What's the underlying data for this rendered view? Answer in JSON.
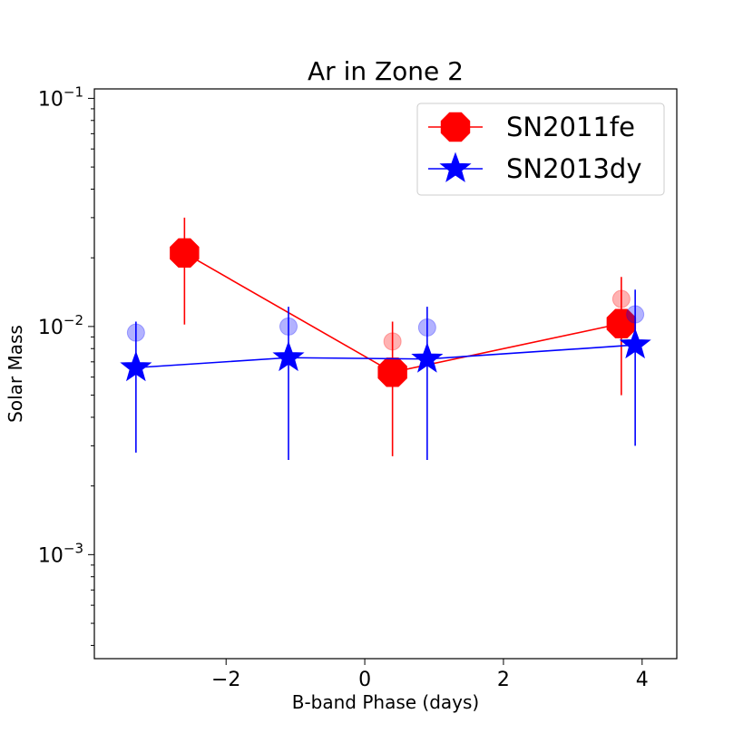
{
  "chart_data": {
    "type": "line",
    "title": "Ar in Zone 2",
    "xlabel": "B-band Phase (days)",
    "ylabel": "Solar Mass",
    "yscale": "log",
    "xlim": [
      -3.9,
      4.5
    ],
    "ylim": [
      0.00035,
      0.11
    ],
    "x_ticks": [
      {
        "value": -2,
        "label": "−2"
      },
      {
        "value": 0,
        "label": "0"
      },
      {
        "value": 2,
        "label": "2"
      },
      {
        "value": 4,
        "label": "4"
      }
    ],
    "y_ticks": [
      {
        "value": 0.1,
        "base": "10",
        "exp": "−1"
      },
      {
        "value": 0.01,
        "base": "10",
        "exp": "−2"
      },
      {
        "value": 0.001,
        "base": "10",
        "exp": "−3"
      }
    ],
    "legend_position": "top-right",
    "series": [
      {
        "name": "SN2011fe",
        "color": "#ff0000",
        "marker": "octagon",
        "x": [
          -2.6,
          0.4,
          3.7
        ],
        "y": [
          0.021,
          0.0063,
          0.0103
        ],
        "err_low": [
          0.0102,
          0.0027,
          0.005
        ],
        "err_high": [
          0.03,
          0.0105,
          0.0165
        ],
        "faded_x": [
          0.4,
          3.7
        ],
        "faded_y": [
          0.0086,
          0.0132
        ]
      },
      {
        "name": "SN2013dy",
        "color": "#0000ff",
        "marker": "star",
        "x": [
          -3.3,
          -1.1,
          0.9,
          3.9
        ],
        "y": [
          0.0066,
          0.0073,
          0.0072,
          0.0083
        ],
        "err_low": [
          0.0028,
          0.0026,
          0.0026,
          0.003
        ],
        "err_high": [
          0.0105,
          0.0122,
          0.0122,
          0.0145
        ],
        "faded_x": [
          -3.3,
          -1.1,
          0.9,
          3.9
        ],
        "faded_y": [
          0.0094,
          0.01,
          0.0099,
          0.0113
        ]
      }
    ]
  }
}
